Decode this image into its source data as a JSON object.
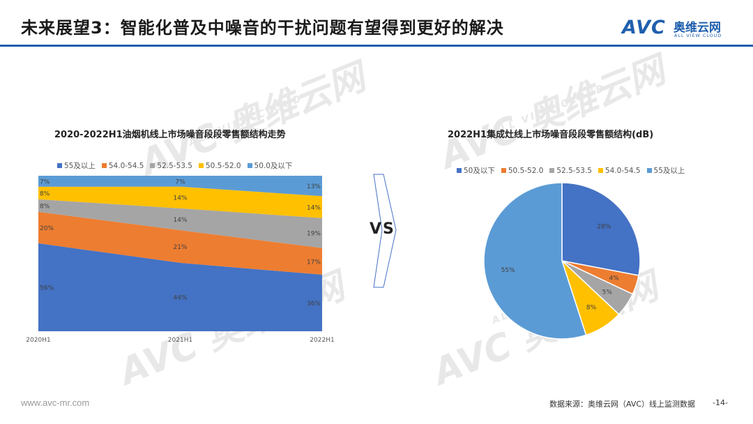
{
  "slide": {
    "title": "未来展望3：智能化普及中噪音的干扰问题有望得到更好的解决",
    "brand_mark": "AVC",
    "brand_cn": "奥维云网",
    "brand_en": "ALL VIEW CLOUD",
    "vs_label": "VS",
    "footer_url": "www.avc-mr.com",
    "source": "数据来源：奥维云网（AVC）线上监测数据",
    "page_number": "-14-",
    "watermark_big": "AVC 奥维云网",
    "watermark_small": "ALL VIEW CLOUD"
  },
  "chart_data": [
    {
      "type": "area",
      "stacked": "percent",
      "title": "2020-2022H1油烟机线上市场噪音段段零售额结构走势",
      "categories": [
        "2020H1",
        "2021H1",
        "2022H1"
      ],
      "series": [
        {
          "name": "55及以上",
          "color": "#4472c4",
          "values": [
            56,
            44,
            36
          ],
          "labels": [
            "56%",
            "44%",
            "36%"
          ]
        },
        {
          "name": "54.0-54.5",
          "color": "#ed7d31",
          "values": [
            20,
            21,
            17
          ],
          "labels": [
            "20%",
            "21%",
            "17%"
          ]
        },
        {
          "name": "52.5-53.5",
          "color": "#a5a5a5",
          "values": [
            8,
            14,
            19
          ],
          "labels": [
            "8%",
            "14%",
            "19%"
          ]
        },
        {
          "name": "50.5-52.0",
          "color": "#ffc000",
          "values": [
            8,
            14,
            14
          ],
          "labels": [
            "8%",
            "14%",
            "14%"
          ]
        },
        {
          "name": "50.0及以下",
          "color": "#5b9bd5",
          "values": [
            7,
            7,
            13
          ],
          "labels": [
            "7%",
            "7%",
            "13%"
          ]
        }
      ],
      "ylim": [
        0,
        100
      ],
      "legend_position": "top",
      "grid": false
    },
    {
      "type": "pie",
      "title": "2022H1集成灶线上市场噪音段段零售额结构(dB)",
      "slices": [
        {
          "name": "50及以下",
          "color": "#4472c4",
          "value": 28,
          "label": "28%"
        },
        {
          "name": "50.5-52.0",
          "color": "#ed7d31",
          "value": 4,
          "label": "4%"
        },
        {
          "name": "52.5-53.5",
          "color": "#a5a5a5",
          "value": 5,
          "label": "5%"
        },
        {
          "name": "54.0-54.5",
          "color": "#ffc000",
          "value": 8,
          "label": "8%"
        },
        {
          "name": "55及以上",
          "color": "#5b9bd5",
          "value": 55,
          "label": "55%"
        }
      ],
      "start_angle_deg": 0,
      "direction": "clockwise",
      "legend_position": "top"
    }
  ]
}
